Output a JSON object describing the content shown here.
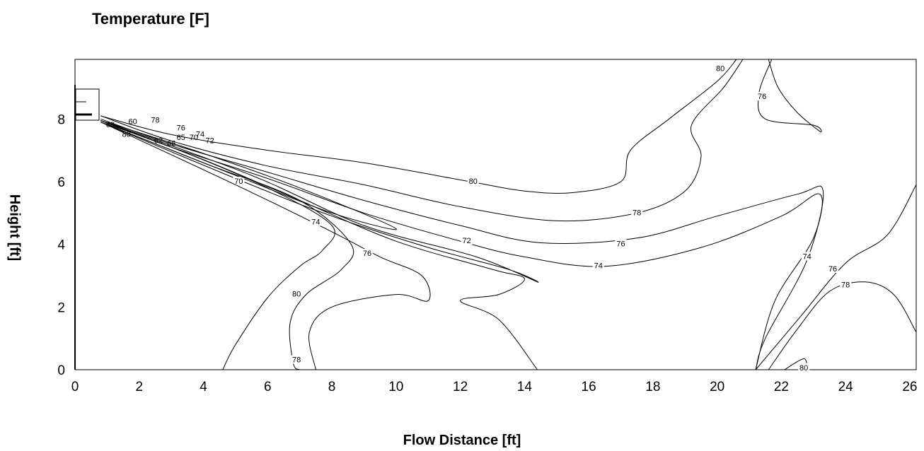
{
  "chart_data": {
    "type": "contour",
    "title": "Temperature [F]",
    "xlabel": "Flow Distance [ft]",
    "ylabel": "Height [ft]",
    "xlim": [
      0,
      26.2
    ],
    "ylim": [
      0,
      9.9
    ],
    "xticks": [
      "0",
      "2",
      "4",
      "6",
      "8",
      "10",
      "12",
      "14",
      "16",
      "18",
      "20",
      "22",
      "24",
      "26"
    ],
    "yticks": [
      "0",
      "2",
      "4",
      "6",
      "8"
    ],
    "grid": false,
    "contours": [
      {
        "level": 80,
        "label": "80",
        "points": [
          [
            0.8,
            8.1
          ],
          [
            3,
            7.5
          ],
          [
            6,
            7.0
          ],
          [
            9,
            6.6
          ],
          [
            12.3,
            6.0
          ],
          [
            14,
            5.7
          ],
          [
            15.5,
            5.65
          ],
          [
            17,
            6.0
          ],
          [
            17.3,
            7.0
          ],
          [
            18.5,
            8.0
          ],
          [
            20,
            9.2
          ],
          [
            20.6,
            9.9
          ]
        ],
        "labels": [
          [
            12.4,
            6.0
          ],
          [
            20.1,
            9.6
          ]
        ]
      },
      {
        "level": 78,
        "label": "78",
        "points": [
          [
            0.8,
            8.1
          ],
          [
            3,
            7.3
          ],
          [
            6,
            6.5
          ],
          [
            9,
            5.9
          ],
          [
            12,
            5.2
          ],
          [
            15,
            4.75
          ],
          [
            17.5,
            5.0
          ],
          [
            19,
            5.7
          ],
          [
            19.5,
            6.8
          ],
          [
            19.2,
            7.8
          ],
          [
            20.2,
            9.0
          ],
          [
            20.8,
            9.9
          ]
        ],
        "labels": [
          [
            17.5,
            5.0
          ]
        ]
      },
      {
        "level": 76,
        "label": "76",
        "points": [
          [
            0.8,
            8.0
          ],
          [
            3,
            7.2
          ],
          [
            6,
            6.3
          ],
          [
            9,
            5.4
          ],
          [
            12,
            4.6
          ],
          [
            14.5,
            4.05
          ],
          [
            17.5,
            4.2
          ],
          [
            20,
            4.9
          ],
          [
            22.5,
            5.6
          ],
          [
            23.3,
            5.7
          ],
          [
            22.8,
            3.5
          ],
          [
            21.5,
            1.0
          ],
          [
            21.2,
            0
          ]
        ],
        "labels": [
          [
            17.0,
            4.0
          ]
        ]
      },
      {
        "level": 74,
        "label": "74",
        "points": [
          [
            0.8,
            7.95
          ],
          [
            3,
            7.1
          ],
          [
            6,
            6.1
          ],
          [
            9,
            5.0
          ],
          [
            12,
            4.1
          ],
          [
            14,
            3.6
          ],
          [
            16.5,
            3.3
          ],
          [
            19.5,
            3.9
          ],
          [
            22,
            4.9
          ],
          [
            23.2,
            5.6
          ],
          [
            23,
            4.2
          ],
          [
            21.8,
            2.2
          ],
          [
            21.2,
            0
          ]
        ],
        "labels": [
          [
            16.3,
            3.3
          ],
          [
            22.8,
            3.6
          ]
        ]
      },
      {
        "level": 72,
        "label": "72",
        "points": [
          [
            0.8,
            7.95
          ],
          [
            5.5,
            6.2
          ],
          [
            9,
            4.6
          ],
          [
            12.5,
            3.6
          ],
          [
            14.4,
            2.8
          ],
          [
            13.5,
            3.2
          ],
          [
            11,
            3.9
          ],
          [
            8,
            4.9
          ],
          [
            5,
            6.1
          ],
          [
            0.8,
            7.9
          ]
        ],
        "labels": [
          [
            12.2,
            4.1
          ]
        ]
      },
      {
        "level": 70,
        "label": "70",
        "points": [
          [
            0.8,
            7.95
          ],
          [
            4,
            6.9
          ],
          [
            7,
            5.8
          ],
          [
            10,
            4.5
          ],
          [
            8,
            5.0
          ],
          [
            5,
            6.2
          ],
          [
            0.8,
            7.9
          ]
        ],
        "labels": [
          [
            5.1,
            6.0
          ]
        ]
      },
      {
        "level": 80,
        "label": "80",
        "points": [
          [
            0.8,
            7.9
          ],
          [
            3,
            7.1
          ],
          [
            6,
            5.8
          ],
          [
            8,
            4.6
          ],
          [
            7.7,
            3.8
          ],
          [
            7,
            3.3
          ],
          [
            6,
            2.3
          ],
          [
            5,
            0.8
          ],
          [
            4.6,
            0
          ]
        ],
        "labels": [
          [
            6.9,
            2.4
          ]
        ]
      },
      {
        "level": 78,
        "label": "78",
        "points": [
          [
            0.8,
            7.9
          ],
          [
            4,
            6.6
          ],
          [
            7,
            5.4
          ],
          [
            8.6,
            4.0
          ],
          [
            8.3,
            3.2
          ],
          [
            7.2,
            2.4
          ],
          [
            6.7,
            1.5
          ],
          [
            6.8,
            0.2
          ],
          [
            7.0,
            0
          ]
        ],
        "labels": [
          [
            6.9,
            0.3
          ]
        ]
      },
      {
        "level": 76,
        "label": "76",
        "points": [
          [
            7.5,
            0
          ],
          [
            7.3,
            1.2
          ],
          [
            8,
            2.0
          ],
          [
            10,
            2.4
          ],
          [
            11,
            2.2
          ],
          [
            10.8,
            3.0
          ],
          [
            9.5,
            3.6
          ],
          [
            8,
            4.4
          ],
          [
            5,
            5.9
          ],
          [
            0.8,
            7.9
          ]
        ],
        "labels": [
          [
            9.1,
            3.7
          ]
        ]
      },
      {
        "level": 74,
        "label": "74",
        "points": [
          [
            0.8,
            7.95
          ],
          [
            4,
            6.7
          ],
          [
            7,
            5.4
          ],
          [
            10,
            4.1
          ],
          [
            13,
            3.2
          ],
          [
            14,
            2.9
          ],
          [
            13.2,
            2.4
          ],
          [
            12,
            2.2
          ],
          [
            13.2,
            1.6
          ],
          [
            14.4,
            0
          ]
        ],
        "labels": [
          [
            7.5,
            4.7
          ]
        ]
      },
      {
        "level": 78,
        "label": "78",
        "points": [
          [
            21.6,
            0
          ],
          [
            22.5,
            1.3
          ],
          [
            23.5,
            2.5
          ],
          [
            24.6,
            2.8
          ],
          [
            25.5,
            2.4
          ],
          [
            26.2,
            1.2
          ]
        ],
        "labels": [
          [
            24.0,
            2.7
          ]
        ]
      },
      {
        "level": 76,
        "label": "76",
        "points": [
          [
            21.2,
            0
          ],
          [
            22.6,
            1.7
          ],
          [
            24,
            3.4
          ],
          [
            25.3,
            4.3
          ],
          [
            26.2,
            5.9
          ]
        ],
        "labels": [
          [
            23.6,
            3.2
          ]
        ]
      },
      {
        "level": 80,
        "label": "80",
        "points": [
          [
            22.1,
            0
          ],
          [
            22.7,
            0.35
          ],
          [
            22.8,
            0
          ]
        ],
        "labels": [
          [
            22.7,
            0.05
          ]
        ]
      },
      {
        "level": 76,
        "label": "76",
        "points": [
          [
            21.7,
            9.9
          ],
          [
            21.3,
            8.8
          ],
          [
            21.5,
            8.0
          ],
          [
            23,
            7.8
          ],
          [
            23.2,
            7.6
          ],
          [
            22.5,
            8.2
          ],
          [
            21.9,
            9.0
          ],
          [
            21.6,
            9.9
          ]
        ],
        "labels": [
          [
            21.4,
            8.7
          ]
        ]
      }
    ],
    "nozzle_labels": [
      "68",
      "60",
      "78",
      "76",
      "74",
      "80",
      "62",
      "66",
      "65",
      "70",
      "72"
    ]
  }
}
